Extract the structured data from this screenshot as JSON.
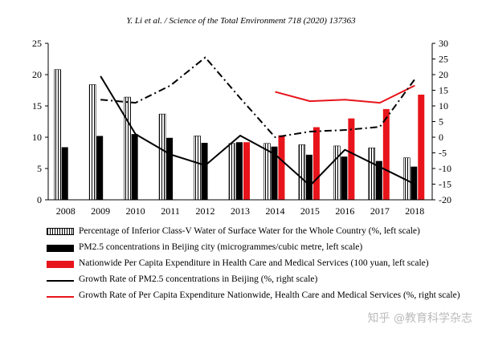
{
  "source_line": "Y. Li et al. / Science of the Total Environment 718 (2020) 137363",
  "chart_data": {
    "type": "bar",
    "categories": [
      "2008",
      "2009",
      "2010",
      "2011",
      "2012",
      "2013",
      "2014",
      "2015",
      "2016",
      "2017",
      "2018"
    ],
    "left_axis": {
      "ylim": [
        0,
        25
      ],
      "ticks": [
        0,
        5,
        10,
        15,
        20,
        25
      ]
    },
    "right_axis": {
      "ylim": [
        -20,
        30
      ],
      "ticks": [
        -20,
        -15,
        -10,
        -5,
        0,
        5,
        10,
        15,
        20,
        25,
        30
      ]
    },
    "series": [
      {
        "name": "Percentage of Inferior Class-V Water of Surface Water for the Whole Country (%, left scale)",
        "kind": "bar",
        "style": "hatched",
        "axis": "left",
        "values": [
          20.8,
          18.4,
          16.4,
          13.7,
          10.2,
          9.0,
          9.0,
          8.8,
          8.6,
          8.3,
          6.7
        ]
      },
      {
        "name": "PM2.5 concentrations in Beijing city (microgrammes/cubic metre, left scale)",
        "kind": "bar",
        "style": "black",
        "axis": "left",
        "values": [
          8.4,
          10.2,
          10.5,
          9.9,
          9.1,
          9.2,
          8.5,
          7.2,
          6.9,
          6.2,
          5.3
        ]
      },
      {
        "name": "Nationwide Per Capita Expenditure in Health Care and Medical Services (100 yuan, left scale)",
        "kind": "bar",
        "style": "red",
        "axis": "left",
        "values": [
          null,
          null,
          null,
          null,
          null,
          9.2,
          10.3,
          11.6,
          13.0,
          14.5,
          16.8
        ]
      },
      {
        "name": "Growth Rate of PM2.5 concentrations in Beijing (%, right scale)",
        "kind": "line",
        "style": "black-solid",
        "axis": "right",
        "values": [
          null,
          19.5,
          1.0,
          -5.5,
          -9.0,
          0.5,
          -5.5,
          -15.5,
          -4.0,
          -9.5,
          -15.0
        ]
      },
      {
        "name": "Growth Rate of Per Capita Expenditure Nationwide, Health Care and Medical Services (%, right scale)",
        "kind": "line",
        "style": "red-solid",
        "axis": "right",
        "values": [
          null,
          null,
          null,
          null,
          null,
          null,
          14.5,
          11.5,
          12.0,
          11.0,
          16.5
        ]
      },
      {
        "name": "",
        "kind": "line",
        "style": "black-dashdot",
        "axis": "right",
        "values": [
          null,
          12.0,
          11.0,
          16.5,
          25.5,
          12.5,
          0.0,
          1.8,
          2.3,
          3.3,
          18.5
        ]
      }
    ],
    "legend": [
      {
        "swatch": "hatched",
        "text": "Percentage of Inferior Class-V Water of Surface Water for the Whole Country (%, left scale)"
      },
      {
        "swatch": "black",
        "text": "PM2.5 concentrations in Beijing city (microgrammes/cubic metre, left scale)"
      },
      {
        "swatch": "red",
        "text": "Nationwide Per Capita Expenditure in Health Care and Medical Services (100 yuan, left scale)"
      },
      {
        "swatch": "black-line",
        "text": "Growth Rate of PM2.5 concentrations in Beijing (%, right scale)"
      },
      {
        "swatch": "red-line",
        "text": "Growth Rate of Per Capita Expenditure Nationwide, Health Care and Medical Services (%, right scale)"
      }
    ],
    "colors": {
      "red": "#e8141b",
      "black": "#000000"
    }
  },
  "watermark": "知乎 @教育科学杂志"
}
